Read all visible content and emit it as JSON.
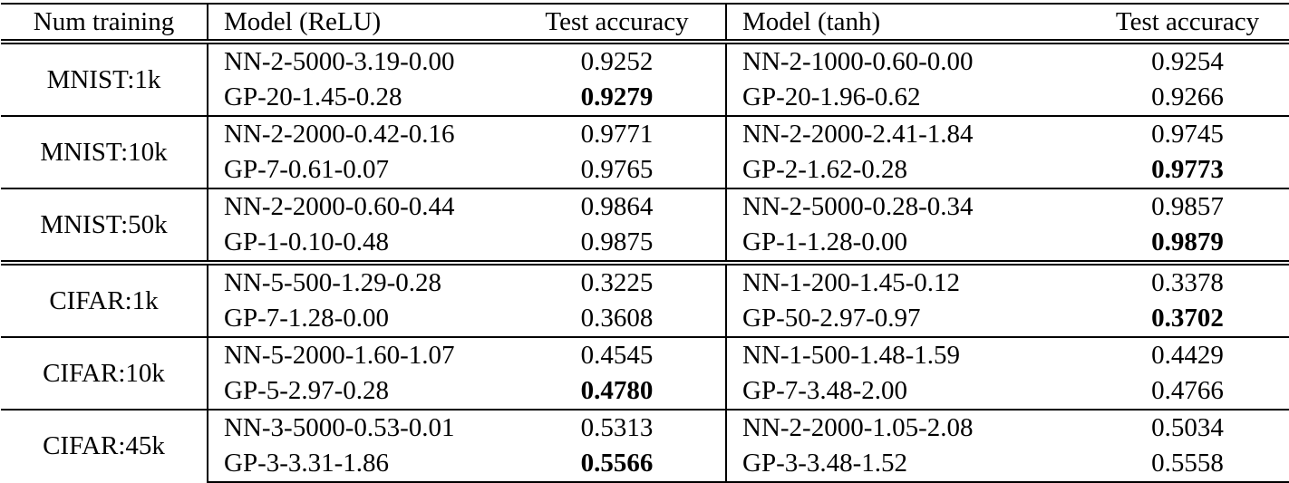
{
  "table": {
    "headers": {
      "num_training": "Num training",
      "model_relu": "Model (ReLU)",
      "acc_relu": "Test accuracy",
      "model_tanh": "Model (tanh)",
      "acc_tanh": "Test accuracy"
    },
    "groups": [
      {
        "dataset": "MNIST:1k",
        "rows": [
          {
            "relu_model": "NN-2-5000-3.19-0.00",
            "relu_acc": "0.9252",
            "relu_acc_bold": false,
            "tanh_model": "NN-2-1000-0.60-0.00",
            "tanh_acc": "0.9254",
            "tanh_acc_bold": false
          },
          {
            "relu_model": "GP-20-1.45-0.28",
            "relu_acc": "0.9279",
            "relu_acc_bold": true,
            "tanh_model": "GP-20-1.96-0.62",
            "tanh_acc": "0.9266",
            "tanh_acc_bold": false
          }
        ]
      },
      {
        "dataset": "MNIST:10k",
        "rows": [
          {
            "relu_model": "NN-2-2000-0.42-0.16",
            "relu_acc": "0.9771",
            "relu_acc_bold": false,
            "tanh_model": "NN-2-2000-2.41-1.84",
            "tanh_acc": "0.9745",
            "tanh_acc_bold": false
          },
          {
            "relu_model": "GP-7-0.61-0.07",
            "relu_acc": "0.9765",
            "relu_acc_bold": false,
            "tanh_model": "GP-2-1.62-0.28",
            "tanh_acc": "0.9773",
            "tanh_acc_bold": true
          }
        ]
      },
      {
        "dataset": "MNIST:50k",
        "rows": [
          {
            "relu_model": "NN-2-2000-0.60-0.44",
            "relu_acc": "0.9864",
            "relu_acc_bold": false,
            "tanh_model": "NN-2-5000-0.28-0.34",
            "tanh_acc": "0.9857",
            "tanh_acc_bold": false
          },
          {
            "relu_model": "GP-1-0.10-0.48",
            "relu_acc": "0.9875",
            "relu_acc_bold": false,
            "tanh_model": "GP-1-1.28-0.00",
            "tanh_acc": "0.9879",
            "tanh_acc_bold": true
          }
        ]
      },
      {
        "dataset": "CIFAR:1k",
        "rows": [
          {
            "relu_model": "NN-5-500-1.29-0.28",
            "relu_acc": "0.3225",
            "relu_acc_bold": false,
            "tanh_model": "NN-1-200-1.45-0.12",
            "tanh_acc": "0.3378",
            "tanh_acc_bold": false
          },
          {
            "relu_model": "GP-7-1.28-0.00",
            "relu_acc": "0.3608",
            "relu_acc_bold": false,
            "tanh_model": "GP-50-2.97-0.97",
            "tanh_acc": "0.3702",
            "tanh_acc_bold": true
          }
        ]
      },
      {
        "dataset": "CIFAR:10k",
        "rows": [
          {
            "relu_model": "NN-5-2000-1.60-1.07",
            "relu_acc": "0.4545",
            "relu_acc_bold": false,
            "tanh_model": "NN-1-500-1.48-1.59",
            "tanh_acc": "0.4429",
            "tanh_acc_bold": false
          },
          {
            "relu_model": "GP-5-2.97-0.28",
            "relu_acc": "0.4780",
            "relu_acc_bold": true,
            "tanh_model": "GP-7-3.48-2.00",
            "tanh_acc": "0.4766",
            "tanh_acc_bold": false
          }
        ]
      },
      {
        "dataset": "CIFAR:45k",
        "rows": [
          {
            "relu_model": "NN-3-5000-0.53-0.01",
            "relu_acc": "0.5313",
            "relu_acc_bold": false,
            "tanh_model": "NN-2-2000-1.05-2.08",
            "tanh_acc": "0.5034",
            "tanh_acc_bold": false
          },
          {
            "relu_model": "GP-3-3.31-1.86",
            "relu_acc": "0.5566",
            "relu_acc_bold": true,
            "tanh_model": "GP-3-3.48-1.52",
            "tanh_acc": "0.5558",
            "tanh_acc_bold": false
          }
        ]
      }
    ],
    "colors": {
      "text": "#000000",
      "background": "#ffffff",
      "rule": "#000000"
    }
  }
}
